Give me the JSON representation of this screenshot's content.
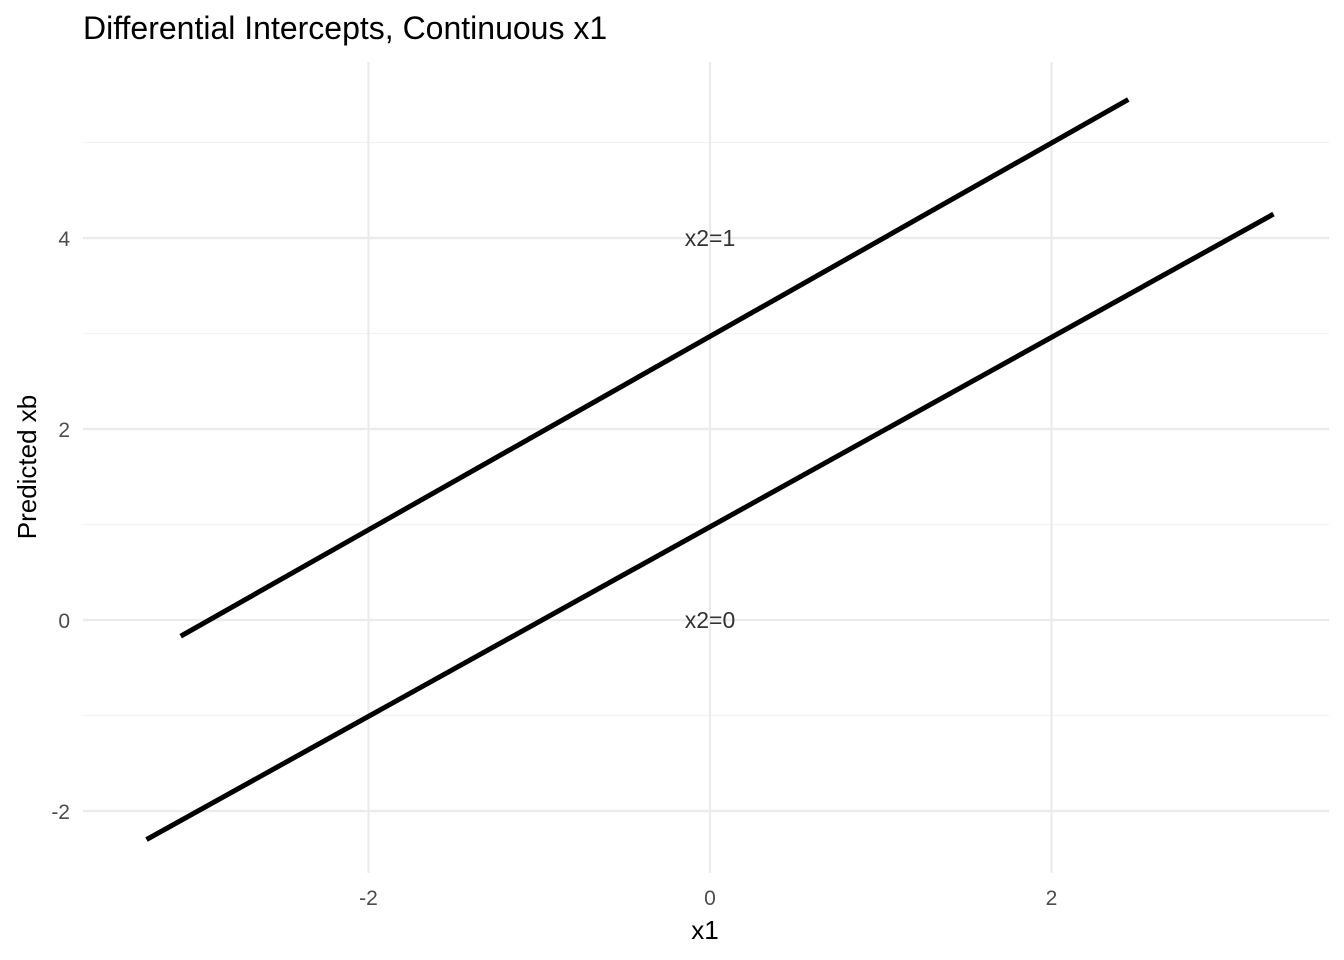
{
  "chart_data": {
    "type": "line",
    "title": "Differential Intercepts, Continuous x1",
    "xlabel": "x1",
    "ylabel": "Predicted xb",
    "xlim": [
      -3.75,
      3.8
    ],
    "ylim": [
      -2.65,
      5.8
    ],
    "x_ticks": [
      -2,
      0,
      2
    ],
    "y_ticks": [
      -2,
      0,
      2,
      4
    ],
    "x_tick_labels": [
      "-2",
      "0",
      "2"
    ],
    "y_tick_labels": [
      "-2",
      "0",
      "2",
      "4"
    ],
    "grid": true,
    "series": [
      {
        "x": [
          -3.1,
          2.45
        ],
        "y": [
          -0.17,
          5.45
        ]
      },
      {
        "x": [
          -3.3,
          3.3
        ],
        "y": [
          -2.3,
          4.25
        ]
      }
    ],
    "annotations": [
      {
        "text": "x2=1",
        "x": 0,
        "y": 4
      },
      {
        "text": "x2=0",
        "x": 0,
        "y": 0
      }
    ]
  }
}
